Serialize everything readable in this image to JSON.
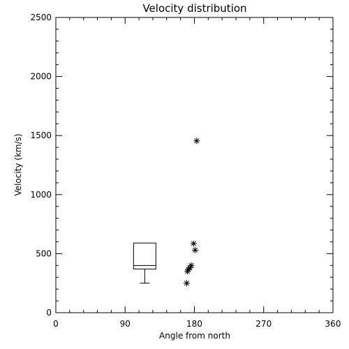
{
  "chart_data": {
    "type": "scatter",
    "title": "Velocity distribution",
    "xlabel": "Angle from north",
    "ylabel": "Velocity (km/s)",
    "xlim": [
      0,
      360
    ],
    "ylim": [
      0,
      2500
    ],
    "xticks": [
      0,
      90,
      180,
      270,
      360
    ],
    "yticks": [
      0,
      500,
      1000,
      1500,
      2000,
      2500
    ],
    "grid": false,
    "boxplot": {
      "x_left": 101,
      "x_right": 130,
      "whisker_low": 250,
      "q1": 370,
      "median": 400,
      "q3": 590,
      "whisker_high": 590
    },
    "points": [
      {
        "x": 183,
        "y": 1455
      },
      {
        "x": 179,
        "y": 585
      },
      {
        "x": 181,
        "y": 530
      },
      {
        "x": 176,
        "y": 400
      },
      {
        "x": 174,
        "y": 380
      },
      {
        "x": 172,
        "y": 365
      },
      {
        "x": 171,
        "y": 350
      },
      {
        "x": 170,
        "y": 250
      }
    ]
  }
}
